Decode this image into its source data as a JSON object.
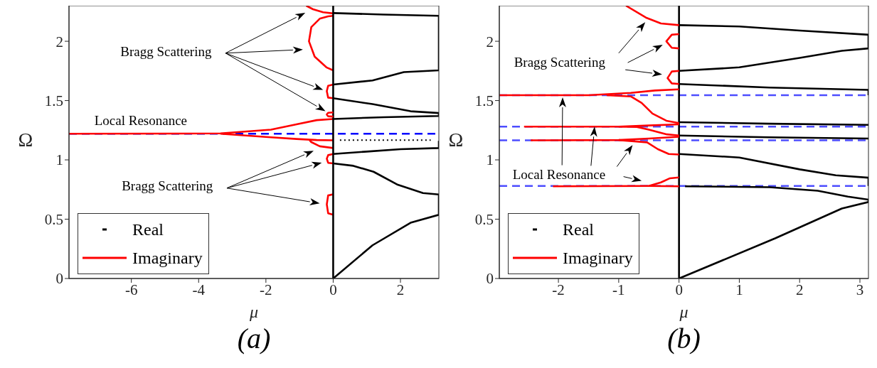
{
  "chart_data": [
    {
      "type": "line",
      "title": "(a)",
      "xlabel": "μ",
      "ylabel": "Ω",
      "xlim": [
        -7.854,
        3.1416
      ],
      "ylim": [
        0,
        2.3
      ],
      "xticks": [
        -6,
        -4,
        -2,
        0,
        2
      ],
      "yticks": [
        0,
        0.5,
        1,
        1.5,
        2
      ],
      "legend": "bottom left",
      "line_style": "solid",
      "annotations": [
        "Bragg Scattering",
        "Local Resonance",
        "Bragg Scattering"
      ],
      "ref_lines": [
        {
          "axis": "y",
          "value": 1.22,
          "color": "#0000ff",
          "line_style": "dashed"
        }
      ],
      "series": [
        {
          "name": "Real",
          "color": "#000000",
          "x": [
            0,
            1.17,
            2.3,
            3.1416,
            3.1416,
            2.67,
            1.92,
            1.2,
            0.6,
            0
          ],
          "values": [
            0,
            0.28,
            0.47,
            0.537,
            0.708,
            0.72,
            0.79,
            0.9,
            0.95,
            0.97
          ]
        },
        {
          "color": "#000000",
          "x": [
            0,
            1,
            2,
            3.1416,
            3.1416
          ],
          "values": [
            1.05,
            1.07,
            1.09,
            1.1,
            1.16
          ]
        },
        {
          "color": "#000000",
          "line_style": "dotted",
          "x": [
            0.2,
            2.9
          ],
          "values": [
            1.167,
            1.167
          ]
        },
        {
          "color": "#000000",
          "x": [
            0,
            1.5,
            3.1416,
            3.1416,
            2.3,
            1.17,
            0
          ],
          "values": [
            1.345,
            1.36,
            1.37,
            1.395,
            1.41,
            1.47,
            1.52
          ]
        },
        {
          "color": "#000000",
          "x": [
            0,
            1.17,
            2.1,
            3.1416,
            3.1416,
            1.5,
            0
          ],
          "values": [
            1.635,
            1.67,
            1.74,
            1.755,
            2.215,
            2.225,
            2.238
          ]
        },
        {
          "name": "Imaginary",
          "color": "#ff0000",
          "x": [
            -7.854,
            -3.35,
            -1.85,
            -1.09,
            -0.49,
            0
          ],
          "values": [
            1.22,
            1.223,
            1.255,
            1.3,
            1.335,
            1.345
          ]
        },
        {
          "color": "#ff0000",
          "x": [
            -3.35,
            -1.85,
            -1.09,
            -0.49,
            0
          ],
          "values": [
            1.22,
            1.19,
            1.176,
            1.167,
            1.165
          ]
        },
        {
          "color": "#ff0000",
          "x": [
            0,
            -0.4,
            -0.65,
            -0.7
          ],
          "values": [
            1.1,
            1.115,
            1.15,
            1.165
          ]
        },
        {
          "color": "#ff0000",
          "x": [
            0,
            -0.15,
            -0.19,
            -0.15,
            0
          ],
          "values": [
            1.05,
            1.04,
            1.01,
            0.975,
            0.97
          ]
        },
        {
          "color": "#ff0000",
          "x": [
            0,
            -0.15,
            -0.19,
            -0.15,
            0
          ],
          "values": [
            0.71,
            0.7,
            0.625,
            0.55,
            0.537
          ]
        },
        {
          "color": "#ff0000",
          "x": [
            0,
            -0.15,
            -0.19,
            -0.15,
            0
          ],
          "values": [
            1.635,
            1.625,
            1.58,
            1.525,
            1.52
          ]
        },
        {
          "color": "#ff0000",
          "x": [
            0,
            -0.2,
            -0.55,
            -0.72,
            -0.65,
            -0.4,
            -0.15,
            0
          ],
          "values": [
            1.755,
            1.78,
            1.87,
            2.0,
            2.12,
            2.19,
            2.21,
            2.215
          ]
        },
        {
          "color": "#ff0000",
          "x": [
            0,
            -0.3,
            -0.6,
            -0.8
          ],
          "values": [
            2.235,
            2.245,
            2.27,
            2.3
          ]
        },
        {
          "color": "#000000",
          "x": [
            0,
            0
          ],
          "values": [
            0,
            2.3
          ]
        },
        {
          "color": "#ff0000",
          "x": [
            0,
            -0.15,
            -0.19,
            -0.15,
            0
          ],
          "values": [
            1.4,
            1.397,
            1.383,
            1.368,
            1.365
          ]
        }
      ]
    },
    {
      "type": "line",
      "title": "(b)",
      "xlabel": "μ",
      "ylabel": "Ω",
      "xlim": [
        -2.98,
        3.1416
      ],
      "ylim": [
        0,
        2.3
      ],
      "xticks": [
        -2,
        -1,
        0,
        1,
        2,
        3
      ],
      "yticks": [
        0,
        0.5,
        1,
        1.5,
        2
      ],
      "legend": "bottom left",
      "line_style": "solid",
      "annotations": [
        "Bragg Scattering",
        {
          "text": "Local Resonance",
          "x": -1.4,
          "y": 1.28
        }
      ],
      "ref_lines": [
        {
          "axis": "y",
          "value": 1.545,
          "color": "#4d4dff",
          "line_style": "dashed"
        },
        {
          "axis": "y",
          "value": 1.28,
          "color": "#4d4dff",
          "line_style": "dashed"
        },
        {
          "axis": "y",
          "value": 1.165,
          "color": "#4d4dff",
          "line_style": "dashed"
        },
        {
          "axis": "y",
          "value": 0.78,
          "color": "#4d4dff",
          "line_style": "dashed"
        }
      ],
      "series": [
        {
          "name": "Real",
          "color": "#000000",
          "x": [
            0,
            0,
            1.6,
            2.7,
            3.1416,
            3.1416,
            2.8,
            2.3,
            1.5,
            0.1
          ],
          "values": [
            2.3,
            0,
            0.34,
            0.59,
            0.645,
            0.665,
            0.69,
            0.74,
            0.77,
            0.777
          ]
        },
        {
          "color": "#000000",
          "x": [
            0,
            1,
            2,
            2.6,
            3.1416,
            3.1416
          ],
          "values": [
            1.05,
            1.02,
            0.92,
            0.87,
            0.85,
            0.78
          ]
        },
        {
          "color": "#000000",
          "x": [
            0,
            1.5,
            3.1416
          ],
          "values": [
            1.205,
            1.19,
            1.18
          ]
        },
        {
          "color": "#000000",
          "x": [
            0,
            1.5,
            3.1416
          ],
          "values": [
            1.318,
            1.305,
            1.295
          ]
        },
        {
          "color": "#000000",
          "x": [
            0,
            1.5,
            3.1416,
            3.1416
          ],
          "values": [
            1.64,
            1.61,
            1.59,
            1.545
          ]
        },
        {
          "color": "#000000",
          "x": [
            0,
            1,
            2,
            2.7,
            3.1416,
            3.1416,
            2,
            1,
            0
          ],
          "values": [
            1.75,
            1.78,
            1.86,
            1.92,
            1.94,
            2.055,
            2.09,
            2.125,
            2.136
          ]
        },
        {
          "name": "Imaginary",
          "color": "#ff0000",
          "x": [
            -2.98,
            -1.5,
            -0.8,
            -0.4,
            0
          ],
          "values": [
            1.545,
            1.545,
            1.565,
            1.585,
            1.595
          ]
        },
        {
          "color": "#ff0000",
          "x": [
            -1.2,
            -0.8,
            -0.62,
            -0.44,
            -0.21,
            0
          ],
          "values": [
            1.545,
            1.535,
            1.48,
            1.39,
            1.33,
            1.31
          ]
        },
        {
          "color": "#ff0000",
          "x": [
            -2.57,
            -1.0,
            -0.5,
            0
          ],
          "values": [
            1.28,
            1.28,
            1.29,
            1.3
          ]
        },
        {
          "color": "#ff0000",
          "x": [
            -1.0,
            -0.7,
            -0.5,
            -0.2,
            0
          ],
          "values": [
            1.28,
            1.278,
            1.255,
            1.215,
            1.205
          ]
        },
        {
          "color": "#ff0000",
          "x": [
            -2.46,
            -1,
            -0.5,
            0
          ],
          "values": [
            1.165,
            1.167,
            1.18,
            1.195
          ]
        },
        {
          "color": "#ff0000",
          "x": [
            -1,
            -0.53,
            -0.35,
            -0.17,
            0
          ],
          "values": [
            1.167,
            1.148,
            1.09,
            1.05,
            1.045
          ]
        },
        {
          "color": "#ff0000",
          "x": [
            -2.09,
            -0.5,
            0
          ],
          "values": [
            0.777,
            0.78,
            0.777
          ]
        },
        {
          "color": "#ff0000",
          "x": [
            -0.5,
            -0.3,
            -0.15,
            0
          ],
          "values": [
            0.78,
            0.81,
            0.845,
            0.852
          ]
        },
        {
          "color": "#ff0000",
          "x": [
            0,
            -0.12,
            -0.21,
            -0.12,
            0
          ],
          "values": [
            2.06,
            2.055,
            2.0,
            1.945,
            1.94
          ]
        },
        {
          "color": "#ff0000",
          "x": [
            0,
            -0.12,
            -0.19,
            -0.12,
            0
          ],
          "values": [
            1.75,
            1.745,
            1.69,
            1.645,
            1.64
          ]
        },
        {
          "color": "#ff0000",
          "x": [
            0,
            -0.3,
            -0.55,
            -0.88
          ],
          "values": [
            2.136,
            2.15,
            2.2,
            2.3
          ]
        }
      ]
    }
  ]
}
